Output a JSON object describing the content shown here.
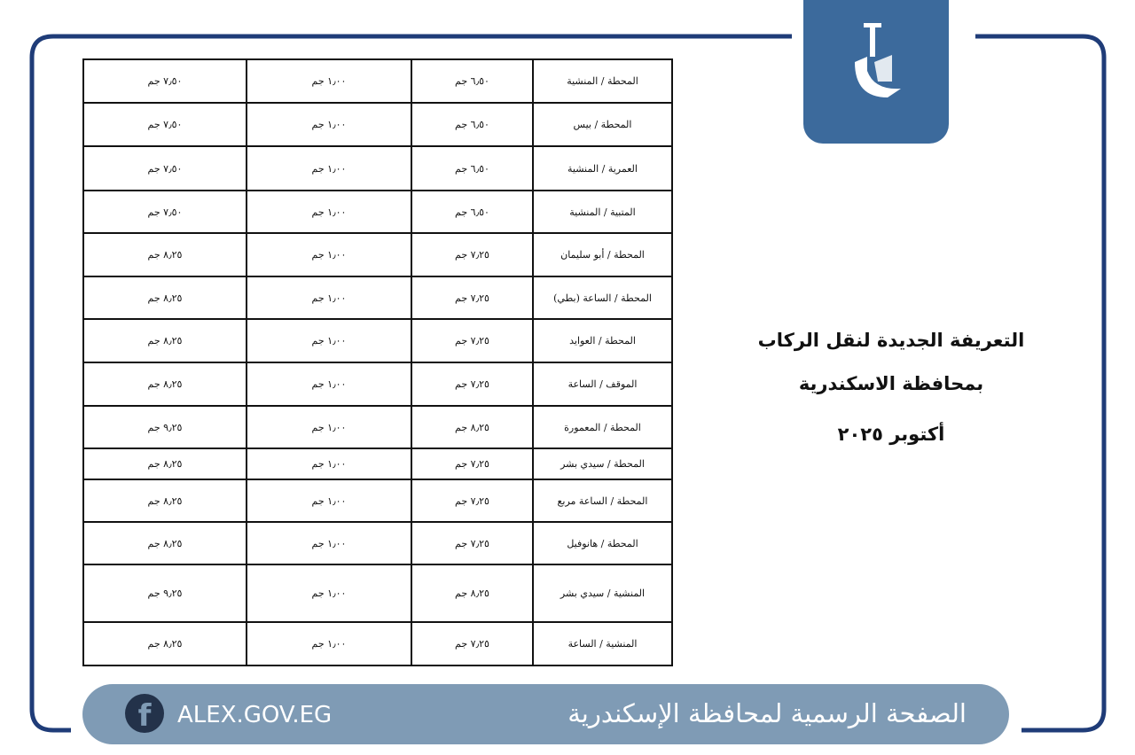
{
  "header": {
    "title_line1": "التعريفة الجديدة لنقل الركاب",
    "title_line2": "بمحافظة الاسكندرية",
    "date": "أكتوبر ٢٠٢٥"
  },
  "table": {
    "rows": [
      [
        "المحطة / المنشية",
        "٦٫٥٠ جم",
        "١٫٠٠ جم",
        "٧٫٥٠ جم"
      ],
      [
        "المحطة / بيس",
        "٦٫٥٠ جم",
        "١٫٠٠ جم",
        "٧٫٥٠ جم"
      ],
      [
        "العمرية / المنشية",
        "٦٫٥٠ جم",
        "١٫٠٠ جم",
        "٧٫٥٠ جم"
      ],
      [
        "المتبية / المنشية",
        "٦٫٥٠ جم",
        "١٫٠٠ جم",
        "٧٫٥٠ جم"
      ],
      [
        "المحطة / أبو سليمان",
        "٧٫٢٥ جم",
        "١٫٠٠ جم",
        "٨٫٢٥ جم"
      ],
      [
        "المحطة / الساعة (بطي)",
        "٧٫٢٥ جم",
        "١٫٠٠ جم",
        "٨٫٢٥ جم"
      ],
      [
        "المحطة / العوايد",
        "٧٫٢٥ جم",
        "١٫٠٠ جم",
        "٨٫٢٥ جم"
      ],
      [
        "الموقف / الساعة",
        "٧٫٢٥ جم",
        "١٫٠٠ جم",
        "٨٫٢٥ جم"
      ],
      [
        "المحطة / المعمورة",
        "٨٫٢٥ جم",
        "١٫٠٠ جم",
        "٩٫٢٥ جم"
      ],
      [
        "المحطة / سيدي بشر",
        "٧٫٢٥ جم",
        "١٫٠٠ جم",
        "٨٫٢٥ جم"
      ],
      [
        "المحطة / الساعة مربع",
        "٧٫٢٥ جم",
        "١٫٠٠ جم",
        "٨٫٢٥ جم"
      ],
      [
        "المحطة / هانوفيل",
        "٧٫٢٥ جم",
        "١٫٠٠ جم",
        "٨٫٢٥ جم"
      ],
      [
        "المنشية / سيدي بشر",
        "٨٫٢٥ جم",
        "١٫٠٠ جم",
        "٩٫٢٥ جم"
      ],
      [
        "المنشية / الساعة",
        "٧٫٢٥ جم",
        "١٫٠٠ جم",
        "٨٫٢٥ جم"
      ]
    ]
  },
  "footer": {
    "url": "ALEX.GOV.EG",
    "page_name": "الصفحة الرسمية لمحافظة الإسكندرية"
  }
}
